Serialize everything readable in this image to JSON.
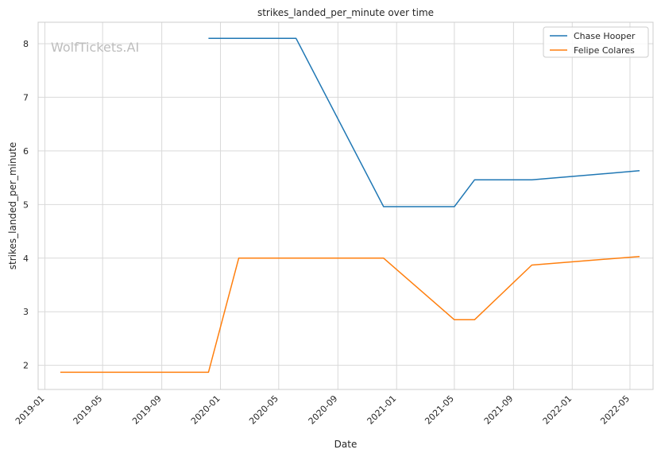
{
  "chart_data": {
    "type": "line",
    "title": "strikes_landed_per_minute over time",
    "xlabel": "Date",
    "ylabel": "strikes_landed_per_minute",
    "watermark": "WolfTickets.AI",
    "x_type": "date",
    "xlim": [
      "2018-12-18",
      "2022-06-18"
    ],
    "ylim": [
      1.55,
      8.4
    ],
    "x_ticks": [
      "2019-01",
      "2019-05",
      "2019-09",
      "2020-01",
      "2020-05",
      "2020-09",
      "2021-01",
      "2021-05",
      "2021-09",
      "2022-01",
      "2022-05"
    ],
    "y_ticks": [
      2,
      3,
      4,
      5,
      6,
      7,
      8
    ],
    "grid": true,
    "legend_position": "top-right",
    "series": [
      {
        "name": "Chase Hooper",
        "color": "#1f77b4",
        "points": [
          {
            "x": "2019-12-07",
            "y": 8.1
          },
          {
            "x": "2020-06-06",
            "y": 8.1
          },
          {
            "x": "2020-12-05",
            "y": 4.96
          },
          {
            "x": "2021-05-01",
            "y": 4.96
          },
          {
            "x": "2021-06-12",
            "y": 5.46
          },
          {
            "x": "2021-10-09",
            "y": 5.46
          },
          {
            "x": "2022-05-21",
            "y": 5.63
          }
        ]
      },
      {
        "name": "Felipe Colares",
        "color": "#ff7f0e",
        "points": [
          {
            "x": "2019-02-02",
            "y": 1.87
          },
          {
            "x": "2019-12-07",
            "y": 1.87
          },
          {
            "x": "2020-02-08",
            "y": 4.0
          },
          {
            "x": "2020-12-05",
            "y": 4.0
          },
          {
            "x": "2021-05-01",
            "y": 2.85
          },
          {
            "x": "2021-06-12",
            "y": 2.85
          },
          {
            "x": "2021-10-09",
            "y": 3.87
          },
          {
            "x": "2022-05-21",
            "y": 4.03
          }
        ]
      }
    ]
  }
}
